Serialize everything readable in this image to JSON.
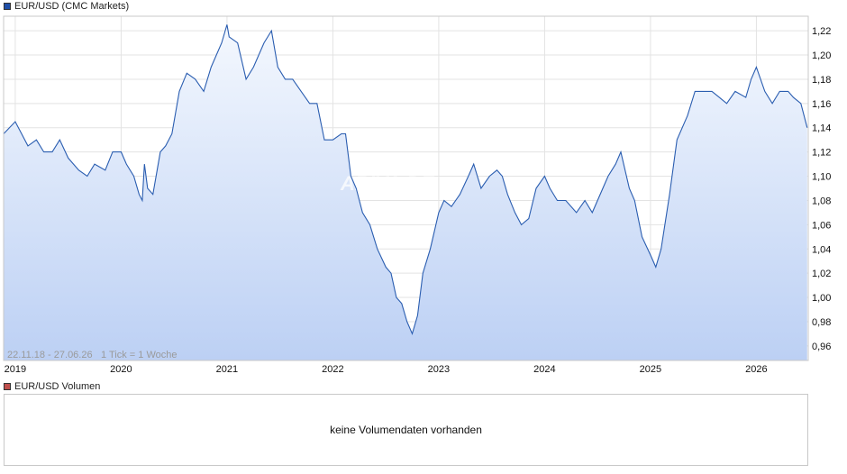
{
  "legend_main": {
    "label": "EUR/USD (CMC Markets)",
    "color": "#1f4fa8"
  },
  "legend_volume": {
    "label": "EUR/USD Volumen",
    "color": "#c0504d"
  },
  "range_text": "22.11.18 - 27.06.26",
  "tick_text": "1 Tick = 1 Woche",
  "watermark": "ARIVA.DE",
  "volume_message": "keine Volumendaten vorhanden",
  "chart_data": {
    "type": "area",
    "x": [
      2018.89,
      2019.0,
      2019.06,
      2019.12,
      2019.2,
      2019.27,
      2019.35,
      2019.42,
      2019.5,
      2019.6,
      2019.68,
      2019.75,
      2019.85,
      2019.92,
      2020.0,
      2020.05,
      2020.12,
      2020.17,
      2020.2,
      2020.22,
      2020.25,
      2020.3,
      2020.37,
      2020.42,
      2020.48,
      2020.55,
      2020.62,
      2020.7,
      2020.78,
      2020.85,
      2020.95,
      2021.0,
      2021.02,
      2021.1,
      2021.18,
      2021.25,
      2021.35,
      2021.42,
      2021.48,
      2021.55,
      2021.62,
      2021.7,
      2021.78,
      2021.85,
      2021.92,
      2022.0,
      2022.08,
      2022.12,
      2022.17,
      2022.22,
      2022.28,
      2022.35,
      2022.42,
      2022.5,
      2022.55,
      2022.6,
      2022.65,
      2022.7,
      2022.75,
      2022.8,
      2022.85,
      2022.92,
      2023.0,
      2023.05,
      2023.12,
      2023.2,
      2023.28,
      2023.33,
      2023.4,
      2023.48,
      2023.55,
      2023.6,
      2023.65,
      2023.72,
      2023.78,
      2023.85,
      2023.92,
      2024.0,
      2024.05,
      2024.12,
      2024.2,
      2024.3,
      2024.38,
      2024.45,
      2024.55,
      2024.6,
      2024.67,
      2024.72,
      2024.8,
      2024.85,
      2024.92,
      2025.0,
      2025.05,
      2025.1,
      2025.18,
      2025.25,
      2025.35,
      2025.42,
      2025.5,
      2025.58,
      2025.65,
      2025.72,
      2025.8,
      2025.9,
      2025.95,
      2026.0,
      2026.08,
      2026.15,
      2026.22,
      2026.3,
      2026.35,
      2026.42,
      2026.48
    ],
    "values": [
      1.135,
      1.145,
      1.135,
      1.125,
      1.13,
      1.12,
      1.12,
      1.13,
      1.115,
      1.105,
      1.1,
      1.11,
      1.105,
      1.12,
      1.12,
      1.11,
      1.1,
      1.085,
      1.08,
      1.11,
      1.09,
      1.085,
      1.12,
      1.125,
      1.135,
      1.17,
      1.185,
      1.18,
      1.17,
      1.19,
      1.21,
      1.225,
      1.215,
      1.21,
      1.18,
      1.19,
      1.21,
      1.22,
      1.19,
      1.18,
      1.18,
      1.17,
      1.16,
      1.16,
      1.13,
      1.13,
      1.135,
      1.135,
      1.1,
      1.09,
      1.07,
      1.06,
      1.04,
      1.025,
      1.02,
      1.0,
      0.995,
      0.98,
      0.97,
      0.985,
      1.02,
      1.04,
      1.07,
      1.08,
      1.075,
      1.085,
      1.1,
      1.11,
      1.09,
      1.1,
      1.105,
      1.1,
      1.085,
      1.07,
      1.06,
      1.065,
      1.09,
      1.1,
      1.09,
      1.08,
      1.08,
      1.07,
      1.08,
      1.07,
      1.09,
      1.1,
      1.11,
      1.12,
      1.09,
      1.08,
      1.05,
      1.035,
      1.025,
      1.04,
      1.085,
      1.13,
      1.15,
      1.17,
      1.17,
      1.17,
      1.165,
      1.16,
      1.17,
      1.165,
      1.18,
      1.19,
      1.17,
      1.16,
      1.17,
      1.17,
      1.165,
      1.16,
      1.14
    ],
    "ylim": [
      0.948,
      1.232
    ],
    "yticks": [
      "0,96",
      "0,98",
      "1,00",
      "1,02",
      "1,04",
      "1,06",
      "1,08",
      "1,10",
      "1,12",
      "1,14",
      "1,16",
      "1,18",
      "1,20",
      "1,22"
    ],
    "ytick_values": [
      0.96,
      0.98,
      1.0,
      1.02,
      1.04,
      1.06,
      1.08,
      1.1,
      1.12,
      1.14,
      1.16,
      1.18,
      1.2,
      1.22
    ],
    "xlim": [
      2018.89,
      2026.49
    ],
    "xticks": [
      "2019",
      "2020",
      "2021",
      "2022",
      "2023",
      "2024",
      "2025",
      "2026"
    ],
    "xtick_values": [
      2019,
      2020,
      2021,
      2022,
      2023,
      2024,
      2025,
      2026
    ],
    "grid": true,
    "line_color": "#2a5db0",
    "fill_top": "#f4f8fe",
    "fill_bottom": "#bcd0f4",
    "grid_color": "#e3e3e3"
  }
}
